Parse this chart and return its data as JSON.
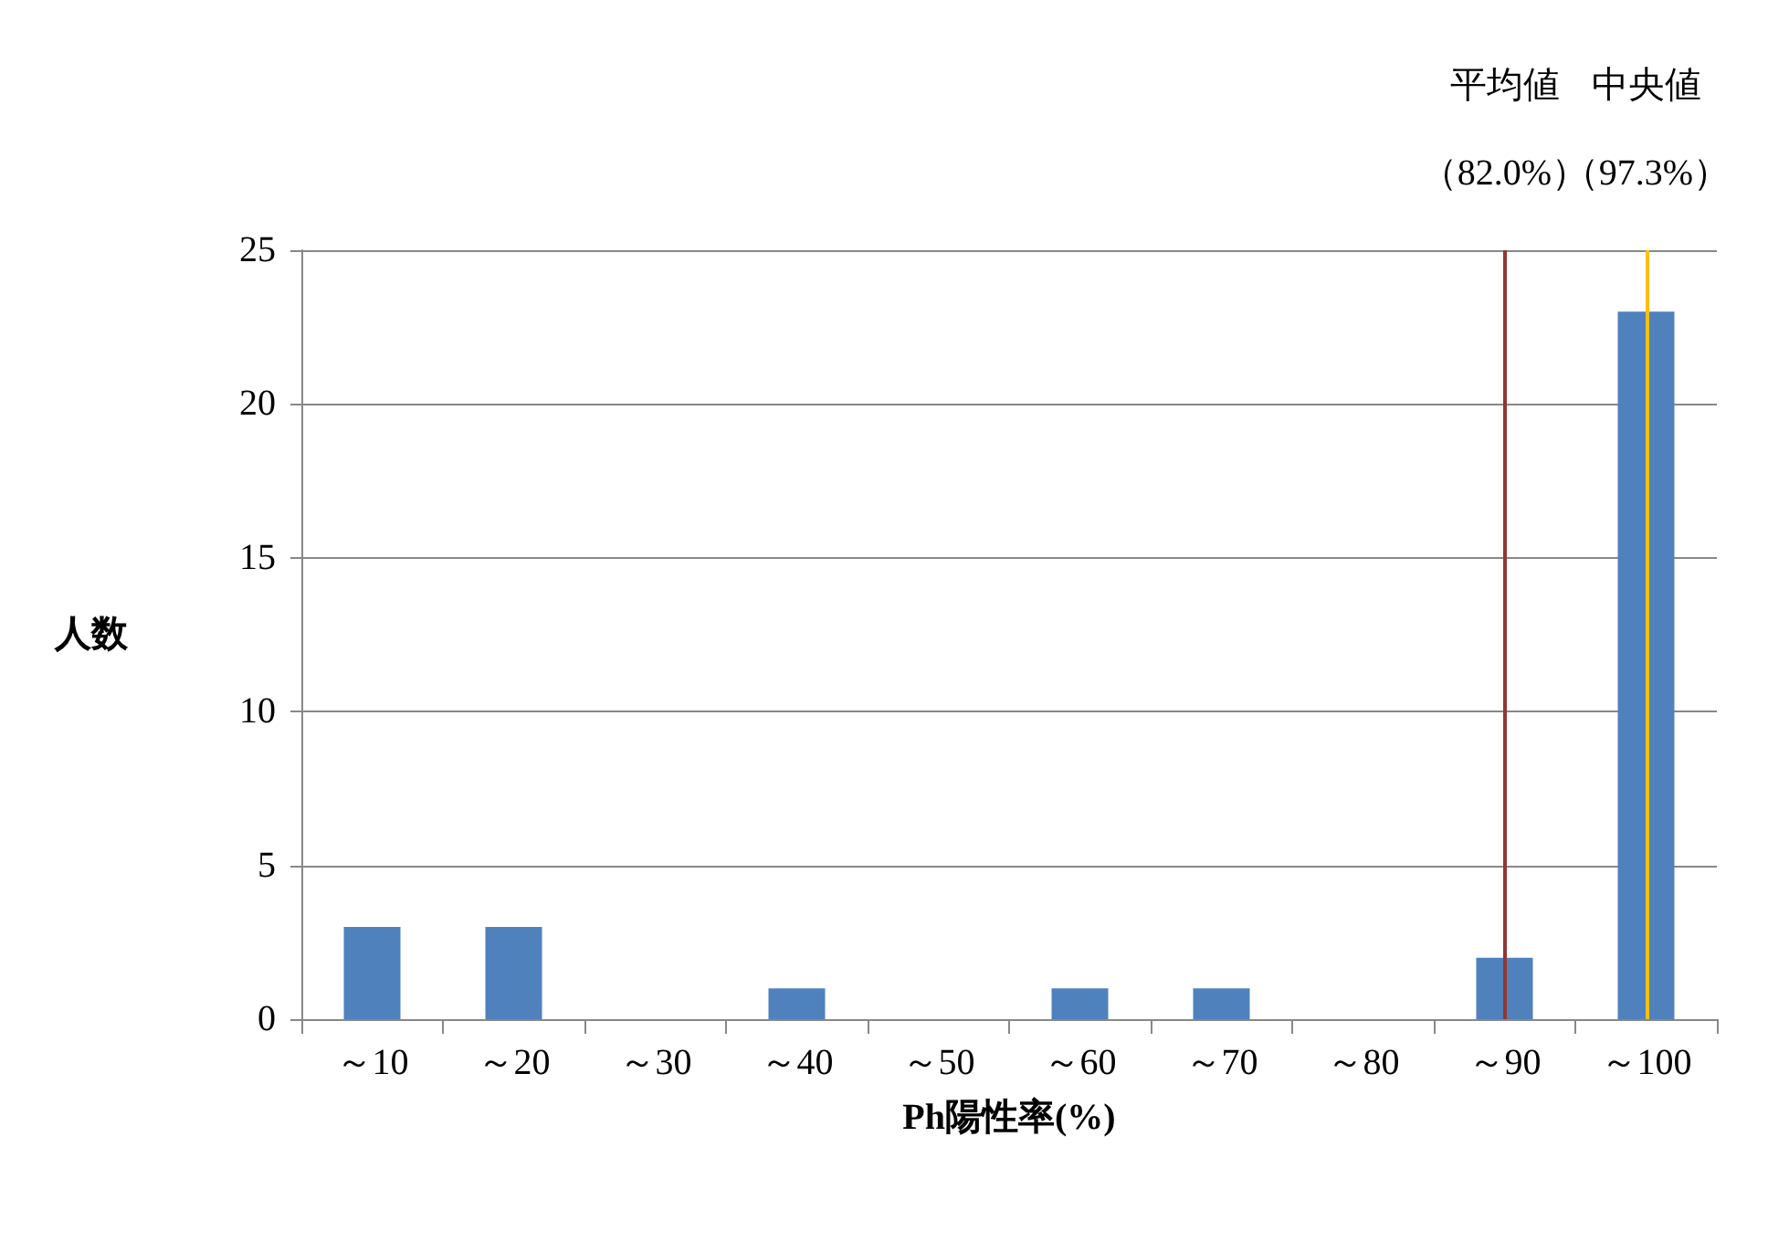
{
  "chart_data": {
    "type": "bar",
    "xlabel": "Ph陽性率(%)",
    "ylabel": "人数",
    "categories": [
      "～10",
      "～20",
      "～30",
      "～40",
      "～50",
      "～60",
      "～70",
      "～80",
      "～90",
      "～100"
    ],
    "values": [
      3,
      3,
      0,
      1,
      0,
      1,
      1,
      0,
      2,
      23
    ],
    "color": "#4f81bd",
    "ylim": [
      0,
      25
    ],
    "yticks": [
      0,
      5,
      10,
      15,
      20,
      25
    ],
    "grid": "y",
    "ref_lines": [
      {
        "axis": "x",
        "value": "～90",
        "label": "平均値（82.0%）",
        "color": "#943634"
      },
      {
        "axis": "x",
        "value": "～100",
        "label": "中央値（97.3%）",
        "color": "#ffc000"
      }
    ]
  }
}
